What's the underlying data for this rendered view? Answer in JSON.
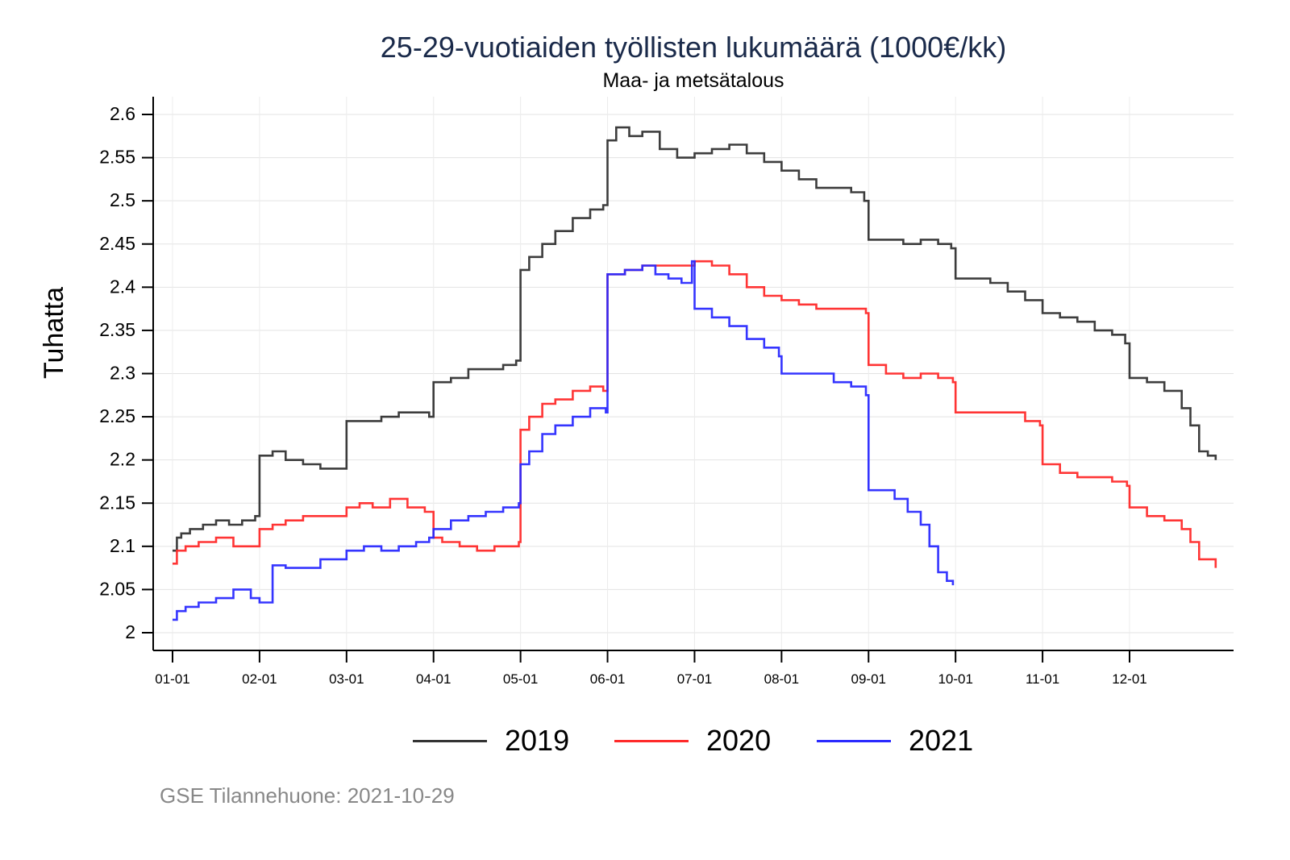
{
  "chart_data": {
    "type": "line",
    "title": "25-29-vuotiaiden työllisten lukumäärä (1000€/kk)",
    "subtitle": "Maa- ja metsätalous",
    "xlabel": "",
    "ylabel": "Tuhatta",
    "ylim": [
      1.977,
      2.621
    ],
    "xlim": [
      0.78,
      12.99
    ],
    "y_ticks": [
      2,
      2.05,
      2.1,
      2.15,
      2.2,
      2.25,
      2.3,
      2.35,
      2.4,
      2.45,
      2.5,
      2.55,
      2.6
    ],
    "y_tick_labels": [
      "2",
      "2.05",
      "2.1",
      "2.15",
      "2.2",
      "2.25",
      "2.3",
      "2.35",
      "2.4",
      "2.45",
      "2.5",
      "2.55",
      "2.6"
    ],
    "x_ticks": [
      1,
      2,
      3,
      4,
      5,
      6,
      7,
      8,
      9,
      10,
      11,
      12
    ],
    "x_tick_labels": [
      "01-01",
      "02-01",
      "03-01",
      "04-01",
      "05-01",
      "06-01",
      "07-01",
      "08-01",
      "09-01",
      "10-01",
      "11-01",
      "12-01"
    ],
    "grid": true,
    "legend_position": "bottom",
    "step": true,
    "series": [
      {
        "name": "2019",
        "color": "#333333",
        "x": [
          1.0,
          1.05,
          1.1,
          1.2,
          1.35,
          1.5,
          1.65,
          1.8,
          1.95,
          2.0,
          2.15,
          2.3,
          2.5,
          2.7,
          2.9,
          3.0,
          3.2,
          3.4,
          3.6,
          3.8,
          3.95,
          4.0,
          4.2,
          4.4,
          4.6,
          4.8,
          4.95,
          5.0,
          5.1,
          5.25,
          5.4,
          5.6,
          5.8,
          5.95,
          6.0,
          6.1,
          6.25,
          6.4,
          6.6,
          6.8,
          7.0,
          7.2,
          7.4,
          7.6,
          7.8,
          8.0,
          8.2,
          8.4,
          8.6,
          8.8,
          8.95,
          9.0,
          9.2,
          9.4,
          9.6,
          9.8,
          9.95,
          10.0,
          10.2,
          10.4,
          10.6,
          10.8,
          11.0,
          11.2,
          11.4,
          11.6,
          11.8,
          11.95,
          12.0,
          12.2,
          12.4,
          12.6,
          12.7,
          12.8,
          12.9,
          12.99
        ],
        "values": [
          2.095,
          2.11,
          2.115,
          2.12,
          2.125,
          2.13,
          2.125,
          2.13,
          2.135,
          2.205,
          2.21,
          2.2,
          2.195,
          2.19,
          2.19,
          2.245,
          2.245,
          2.25,
          2.255,
          2.255,
          2.25,
          2.29,
          2.295,
          2.305,
          2.305,
          2.31,
          2.315,
          2.42,
          2.435,
          2.45,
          2.465,
          2.48,
          2.49,
          2.495,
          2.57,
          2.585,
          2.575,
          2.58,
          2.56,
          2.55,
          2.555,
          2.56,
          2.565,
          2.555,
          2.545,
          2.535,
          2.525,
          2.515,
          2.515,
          2.51,
          2.5,
          2.455,
          2.455,
          2.45,
          2.455,
          2.45,
          2.445,
          2.41,
          2.41,
          2.405,
          2.395,
          2.385,
          2.37,
          2.365,
          2.36,
          2.35,
          2.345,
          2.335,
          2.295,
          2.29,
          2.28,
          2.26,
          2.24,
          2.21,
          2.205,
          2.2
        ]
      },
      {
        "name": "2020",
        "color": "#ff2a2a",
        "x": [
          1.0,
          1.05,
          1.15,
          1.3,
          1.5,
          1.7,
          1.9,
          2.0,
          2.15,
          2.3,
          2.5,
          2.7,
          2.9,
          3.0,
          3.15,
          3.3,
          3.5,
          3.7,
          3.9,
          4.0,
          4.1,
          4.3,
          4.5,
          4.7,
          4.9,
          4.98,
          5.0,
          5.1,
          5.25,
          5.4,
          5.6,
          5.8,
          5.95,
          6.0,
          6.2,
          6.4,
          6.6,
          6.8,
          7.0,
          7.2,
          7.4,
          7.6,
          7.8,
          8.0,
          8.2,
          8.4,
          8.6,
          8.8,
          8.97,
          9.0,
          9.2,
          9.4,
          9.6,
          9.8,
          9.97,
          10.0,
          10.2,
          10.4,
          10.6,
          10.8,
          10.97,
          11.0,
          11.2,
          11.4,
          11.6,
          11.8,
          11.97,
          12.0,
          12.2,
          12.4,
          12.6,
          12.7,
          12.8,
          12.9,
          12.99
        ],
        "values": [
          2.08,
          2.095,
          2.1,
          2.105,
          2.11,
          2.1,
          2.1,
          2.12,
          2.125,
          2.13,
          2.135,
          2.135,
          2.135,
          2.145,
          2.15,
          2.145,
          2.155,
          2.145,
          2.14,
          2.11,
          2.105,
          2.1,
          2.095,
          2.1,
          2.1,
          2.105,
          2.235,
          2.25,
          2.265,
          2.27,
          2.28,
          2.285,
          2.28,
          2.415,
          2.42,
          2.425,
          2.425,
          2.425,
          2.43,
          2.425,
          2.415,
          2.4,
          2.39,
          2.385,
          2.38,
          2.375,
          2.375,
          2.375,
          2.37,
          2.31,
          2.3,
          2.295,
          2.3,
          2.295,
          2.29,
          2.255,
          2.255,
          2.255,
          2.255,
          2.245,
          2.24,
          2.195,
          2.185,
          2.18,
          2.18,
          2.175,
          2.17,
          2.145,
          2.135,
          2.13,
          2.12,
          2.105,
          2.085,
          2.085,
          2.075
        ]
      },
      {
        "name": "2021",
        "color": "#2a2aff",
        "x": [
          1.0,
          1.05,
          1.15,
          1.3,
          1.5,
          1.7,
          1.9,
          2.0,
          2.15,
          2.3,
          2.5,
          2.7,
          2.9,
          3.0,
          3.2,
          3.4,
          3.6,
          3.8,
          3.95,
          4.0,
          4.2,
          4.4,
          4.6,
          4.8,
          4.98,
          5.0,
          5.1,
          5.25,
          5.4,
          5.6,
          5.8,
          5.98,
          6.0,
          6.2,
          6.4,
          6.55,
          6.7,
          6.85,
          6.97,
          7.0,
          7.2,
          7.4,
          7.6,
          7.8,
          7.97,
          8.0,
          8.2,
          8.4,
          8.6,
          8.8,
          8.97,
          9.0,
          9.15,
          9.3,
          9.45,
          9.6,
          9.7,
          9.8,
          9.9,
          9.97
        ],
        "values": [
          2.015,
          2.025,
          2.03,
          2.035,
          2.04,
          2.05,
          2.04,
          2.035,
          2.078,
          2.075,
          2.075,
          2.085,
          2.085,
          2.095,
          2.1,
          2.095,
          2.1,
          2.105,
          2.11,
          2.12,
          2.13,
          2.135,
          2.14,
          2.145,
          2.15,
          2.195,
          2.21,
          2.23,
          2.24,
          2.25,
          2.26,
          2.255,
          2.415,
          2.42,
          2.425,
          2.415,
          2.41,
          2.405,
          2.43,
          2.375,
          2.365,
          2.355,
          2.34,
          2.33,
          2.32,
          2.3,
          2.3,
          2.3,
          2.29,
          2.285,
          2.275,
          2.165,
          2.165,
          2.155,
          2.14,
          2.125,
          2.1,
          2.07,
          2.06,
          2.055
        ]
      }
    ]
  },
  "legend": {
    "items": [
      {
        "label": "2019",
        "color": "#333333"
      },
      {
        "label": "2020",
        "color": "#ff2a2a"
      },
      {
        "label": "2021",
        "color": "#2a2aff"
      }
    ]
  },
  "source": "GSE Tilannehuone: 2021-10-29"
}
